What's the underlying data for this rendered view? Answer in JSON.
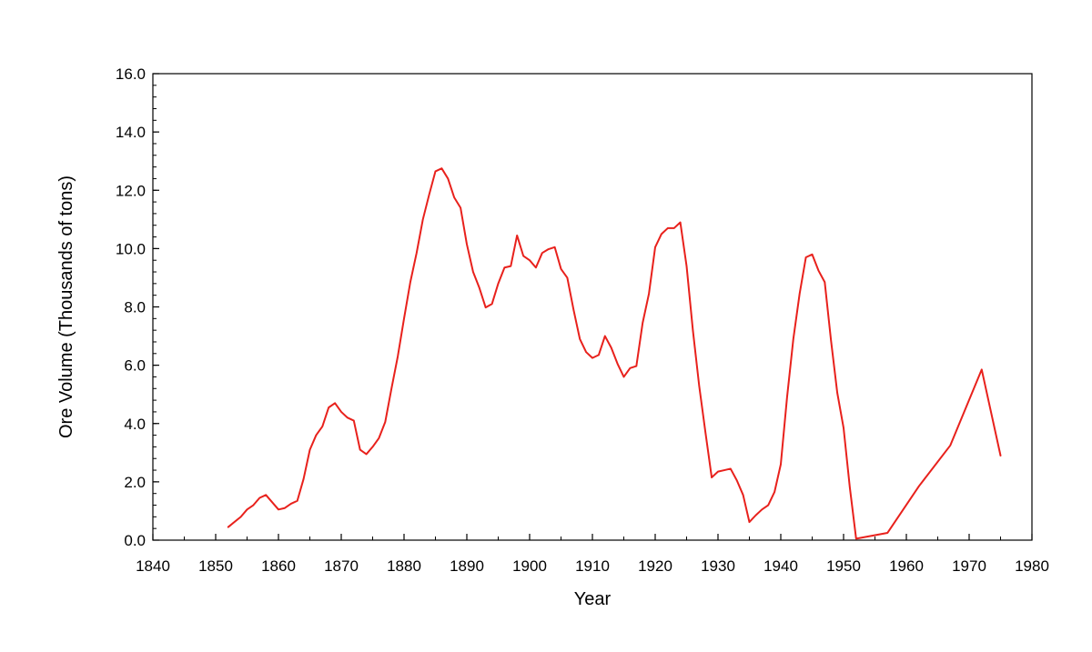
{
  "chart_data": {
    "type": "line",
    "title": "",
    "xlabel": "Year",
    "ylabel": "Ore Volume (Thousands of tons)",
    "xlim": [
      1840,
      1980
    ],
    "ylim": [
      0,
      16
    ],
    "x_ticks": [
      "1840",
      "1850",
      "1860",
      "1870",
      "1880",
      "1890",
      "1900",
      "1910",
      "1920",
      "1930",
      "1940",
      "1950",
      "1960",
      "1970",
      "1980"
    ],
    "y_ticks": [
      "0.0",
      "2.0",
      "4.0",
      "6.0",
      "8.0",
      "10.0",
      "12.0",
      "14.0",
      "16.0"
    ],
    "grid": false,
    "legend": "none",
    "series": [
      {
        "color": "#e8211c",
        "points": [
          [
            1852,
            0.45
          ],
          [
            1854,
            0.8
          ],
          [
            1855,
            1.05
          ],
          [
            1856,
            1.2
          ],
          [
            1857,
            1.45
          ],
          [
            1858,
            1.55
          ],
          [
            1859,
            1.3
          ],
          [
            1860,
            1.05
          ],
          [
            1861,
            1.1
          ],
          [
            1862,
            1.25
          ],
          [
            1863,
            1.35
          ],
          [
            1864,
            2.1
          ],
          [
            1865,
            3.1
          ],
          [
            1866,
            3.6
          ],
          [
            1867,
            3.9
          ],
          [
            1868,
            4.55
          ],
          [
            1869,
            4.7
          ],
          [
            1870,
            4.4
          ],
          [
            1871,
            4.2
          ],
          [
            1872,
            4.1
          ],
          [
            1873,
            3.1
          ],
          [
            1874,
            2.95
          ],
          [
            1875,
            3.2
          ],
          [
            1876,
            3.5
          ],
          [
            1877,
            4.05
          ],
          [
            1878,
            5.2
          ],
          [
            1879,
            6.3
          ],
          [
            1880,
            7.6
          ],
          [
            1881,
            8.85
          ],
          [
            1882,
            9.85
          ],
          [
            1883,
            11.0
          ],
          [
            1884,
            11.85
          ],
          [
            1885,
            12.65
          ],
          [
            1886,
            12.75
          ],
          [
            1887,
            12.4
          ],
          [
            1888,
            11.75
          ],
          [
            1889,
            11.4
          ],
          [
            1890,
            10.15
          ],
          [
            1891,
            9.2
          ],
          [
            1892,
            8.65
          ],
          [
            1893,
            7.98
          ],
          [
            1894,
            8.1
          ],
          [
            1895,
            8.8
          ],
          [
            1896,
            9.35
          ],
          [
            1897,
            9.4
          ],
          [
            1898,
            10.45
          ],
          [
            1899,
            9.75
          ],
          [
            1900,
            9.6
          ],
          [
            1901,
            9.35
          ],
          [
            1902,
            9.85
          ],
          [
            1903,
            9.98
          ],
          [
            1904,
            10.05
          ],
          [
            1905,
            9.3
          ],
          [
            1906,
            9.0
          ],
          [
            1907,
            7.9
          ],
          [
            1908,
            6.9
          ],
          [
            1909,
            6.45
          ],
          [
            1910,
            6.25
          ],
          [
            1911,
            6.35
          ],
          [
            1912,
            7.0
          ],
          [
            1913,
            6.6
          ],
          [
            1914,
            6.05
          ],
          [
            1915,
            5.6
          ],
          [
            1916,
            5.9
          ],
          [
            1917,
            5.97
          ],
          [
            1918,
            7.45
          ],
          [
            1919,
            8.45
          ],
          [
            1920,
            10.05
          ],
          [
            1921,
            10.5
          ],
          [
            1922,
            10.7
          ],
          [
            1923,
            10.7
          ],
          [
            1924,
            10.9
          ],
          [
            1925,
            9.4
          ],
          [
            1926,
            7.2
          ],
          [
            1927,
            5.3
          ],
          [
            1928,
            3.7
          ],
          [
            1929,
            2.15
          ],
          [
            1930,
            2.35
          ],
          [
            1931,
            2.4
          ],
          [
            1932,
            2.45
          ],
          [
            1933,
            2.05
          ],
          [
            1934,
            1.55
          ],
          [
            1935,
            0.62
          ],
          [
            1936,
            0.85
          ],
          [
            1937,
            1.05
          ],
          [
            1938,
            1.2
          ],
          [
            1939,
            1.65
          ],
          [
            1940,
            2.6
          ],
          [
            1941,
            4.9
          ],
          [
            1942,
            6.9
          ],
          [
            1943,
            8.45
          ],
          [
            1944,
            9.7
          ],
          [
            1945,
            9.8
          ],
          [
            1946,
            9.25
          ],
          [
            1947,
            8.85
          ],
          [
            1948,
            6.85
          ],
          [
            1949,
            5.05
          ],
          [
            1950,
            3.85
          ],
          [
            1951,
            1.8
          ],
          [
            1952,
            0.05
          ],
          [
            1957,
            0.25
          ],
          [
            1962,
            1.85
          ],
          [
            1967,
            3.25
          ],
          [
            1972,
            5.85
          ],
          [
            1975,
            2.9
          ]
        ]
      }
    ]
  }
}
